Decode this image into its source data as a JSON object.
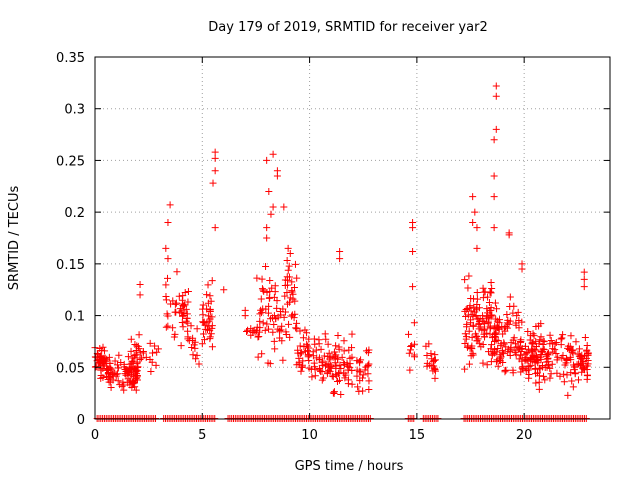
{
  "chart_data": {
    "type": "scatter",
    "title": "Day 179 of 2019, SRMTID for receiver yar2",
    "xlabel": "GPS time / hours",
    "ylabel": "SRMTID / TECUs",
    "xlim": [
      0,
      24
    ],
    "ylim": [
      0,
      0.35
    ],
    "x_ticks": [
      "0",
      "5",
      "10",
      "15",
      "20"
    ],
    "y_ticks": [
      "0",
      "0.05",
      "0.1",
      "0.15",
      "0.2",
      "0.25",
      "0.3",
      "0.35"
    ],
    "grid": true,
    "marker": "plus",
    "series": [
      {
        "name": "SRMTID",
        "color": "#ff0000",
        "clusters": [
          {
            "x": [
              0.0,
              0.5
            ],
            "y": [
              0.03,
              0.08
            ],
            "n": 40
          },
          {
            "x": [
              0.5,
              2.0
            ],
            "y": [
              0.02,
              0.07
            ],
            "n": 90
          },
          {
            "x": [
              1.6,
              2.2
            ],
            "y": [
              0.03,
              0.09
            ],
            "n": 25
          },
          {
            "x": [
              2.2,
              3.0
            ],
            "y": [
              0.04,
              0.08
            ],
            "n": 12
          },
          {
            "x": [
              3.3,
              4.4
            ],
            "y": [
              0.06,
              0.15
            ],
            "n": 45
          },
          {
            "x": [
              4.3,
              5.0
            ],
            "y": [
              0.04,
              0.11
            ],
            "n": 15
          },
          {
            "x": [
              5.0,
              5.5
            ],
            "y": [
              0.04,
              0.15
            ],
            "n": 35
          },
          {
            "x": [
              7.0,
              7.5
            ],
            "y": [
              0.07,
              0.1
            ],
            "n": 8
          },
          {
            "x": [
              7.5,
              8.8
            ],
            "y": [
              0.04,
              0.16
            ],
            "n": 60
          },
          {
            "x": [
              8.8,
              9.4
            ],
            "y": [
              0.06,
              0.17
            ],
            "n": 35
          },
          {
            "x": [
              9.4,
              10.5
            ],
            "y": [
              0.03,
              0.1
            ],
            "n": 50
          },
          {
            "x": [
              10.5,
              12.0
            ],
            "y": [
              0.01,
              0.09
            ],
            "n": 80
          },
          {
            "x": [
              12.2,
              12.8
            ],
            "y": [
              0.02,
              0.08
            ],
            "n": 25
          },
          {
            "x": [
              14.6,
              14.9
            ],
            "y": [
              0.04,
              0.1
            ],
            "n": 10
          },
          {
            "x": [
              15.4,
              15.9
            ],
            "y": [
              0.03,
              0.09
            ],
            "n": 20
          },
          {
            "x": [
              17.2,
              18.5
            ],
            "y": [
              0.04,
              0.15
            ],
            "n": 110
          },
          {
            "x": [
              18.5,
              19.8
            ],
            "y": [
              0.03,
              0.13
            ],
            "n": 90
          },
          {
            "x": [
              19.8,
              21.5
            ],
            "y": [
              0.02,
              0.1
            ],
            "n": 120
          },
          {
            "x": [
              21.5,
              23.0
            ],
            "y": [
              0.02,
              0.09
            ],
            "n": 80
          }
        ],
        "points": [
          [
            3.5,
            0.207
          ],
          [
            3.4,
            0.19
          ],
          [
            3.3,
            0.165
          ],
          [
            3.4,
            0.155
          ],
          [
            5.6,
            0.258
          ],
          [
            5.6,
            0.252
          ],
          [
            5.6,
            0.24
          ],
          [
            5.5,
            0.228
          ],
          [
            5.6,
            0.185
          ],
          [
            8.0,
            0.25
          ],
          [
            8.3,
            0.256
          ],
          [
            8.5,
            0.24
          ],
          [
            8.5,
            0.235
          ],
          [
            8.1,
            0.22
          ],
          [
            8.3,
            0.205
          ],
          [
            8.2,
            0.198
          ],
          [
            8.0,
            0.185
          ],
          [
            8.0,
            0.175
          ],
          [
            8.8,
            0.205
          ],
          [
            9.0,
            0.165
          ],
          [
            9.1,
            0.16
          ],
          [
            11.4,
            0.162
          ],
          [
            11.4,
            0.155
          ],
          [
            14.8,
            0.19
          ],
          [
            14.8,
            0.185
          ],
          [
            14.8,
            0.162
          ],
          [
            14.8,
            0.128
          ],
          [
            17.6,
            0.215
          ],
          [
            17.7,
            0.2
          ],
          [
            17.6,
            0.19
          ],
          [
            17.8,
            0.185
          ],
          [
            17.8,
            0.165
          ],
          [
            18.7,
            0.322
          ],
          [
            18.7,
            0.312
          ],
          [
            18.7,
            0.28
          ],
          [
            18.6,
            0.27
          ],
          [
            18.6,
            0.235
          ],
          [
            18.6,
            0.215
          ],
          [
            18.6,
            0.185
          ],
          [
            19.3,
            0.18
          ],
          [
            19.3,
            0.178
          ],
          [
            19.9,
            0.15
          ],
          [
            19.9,
            0.145
          ],
          [
            22.8,
            0.142
          ],
          [
            22.8,
            0.135
          ],
          [
            22.8,
            0.128
          ],
          [
            2.1,
            0.13
          ],
          [
            2.1,
            0.12
          ],
          [
            6.0,
            0.125
          ],
          [
            7.0,
            0.105
          ],
          [
            7.0,
            0.1
          ]
        ],
        "zero_ranges": [
          [
            0.1,
            2.9
          ],
          [
            3.2,
            5.6
          ],
          [
            6.2,
            12.9
          ],
          [
            14.6,
            14.9
          ],
          [
            15.3,
            16.0
          ],
          [
            17.2,
            22.9
          ]
        ]
      }
    ]
  }
}
